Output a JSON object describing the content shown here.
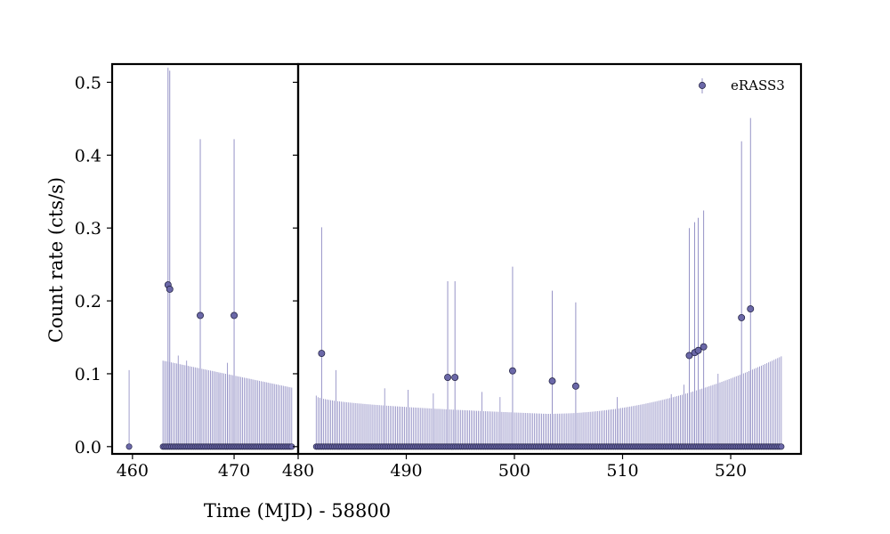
{
  "chart_data": {
    "type": "scatter",
    "title": "",
    "xlabel": "Time (MJD) - 58800",
    "ylabel": "Count rate (cts/s)",
    "ylim": [
      -0.01,
      0.525
    ],
    "yticks": [
      0.0,
      0.1,
      0.2,
      0.3,
      0.4,
      0.5
    ],
    "ytick_labels": [
      "0.0",
      "0.1",
      "0.2",
      "0.3",
      "0.4",
      "0.5"
    ],
    "colors": {
      "marker": "#6b68a8",
      "errorbar": "#8a87c0",
      "edge": "#1a1a3a"
    },
    "panels": [
      {
        "name": "left",
        "xlim": [
          458,
          476.3
        ],
        "xticks": [
          460,
          470
        ],
        "xtick_labels": [
          "460",
          "470"
        ]
      },
      {
        "name": "right",
        "xlim": [
          480,
          526.5
        ],
        "xticks": [
          480,
          490,
          500,
          510,
          520
        ],
        "xtick_labels": [
          "480",
          "490",
          "500",
          "510",
          "520"
        ]
      }
    ],
    "legend": {
      "position": "top-right",
      "entries": [
        {
          "label": "eRASS3"
        }
      ]
    },
    "series": [
      {
        "name": "eRASS3",
        "detections": [
          {
            "x": 463.5,
            "y": 0.222,
            "err": 0.298
          },
          {
            "x": 463.67,
            "y": 0.216,
            "err": 0.3
          },
          {
            "x": 466.67,
            "y": 0.18,
            "err": 0.242
          },
          {
            "x": 470.0,
            "y": 0.18,
            "err": 0.242
          },
          {
            "x": 482.17,
            "y": 0.128,
            "err": 0.173
          },
          {
            "x": 493.83,
            "y": 0.095,
            "err": 0.132
          },
          {
            "x": 494.5,
            "y": 0.095,
            "err": 0.132
          },
          {
            "x": 499.83,
            "y": 0.104,
            "err": 0.143
          },
          {
            "x": 503.5,
            "y": 0.09,
            "err": 0.124
          },
          {
            "x": 505.67,
            "y": 0.083,
            "err": 0.115
          },
          {
            "x": 516.17,
            "y": 0.125,
            "err": 0.175
          },
          {
            "x": 516.67,
            "y": 0.129,
            "err": 0.179
          },
          {
            "x": 517.0,
            "y": 0.132,
            "err": 0.182
          },
          {
            "x": 517.5,
            "y": 0.137,
            "err": 0.187
          },
          {
            "x": 521.0,
            "y": 0.177,
            "err": 0.242
          },
          {
            "x": 521.83,
            "y": 0.189,
            "err": 0.262
          }
        ],
        "upper_limits": {
          "zero_value": 0.0,
          "segments": [
            {
              "x_start": 459.67,
              "x_end": 459.67,
              "step": 0.1667,
              "err_start": 0.105,
              "err_end": 0.105
            },
            {
              "x_start": 463.0,
              "x_end": 475.67,
              "step": 0.1667,
              "err_start": 0.118,
              "err_end": 0.081
            },
            {
              "x_start": 481.67,
              "x_end": 524.83,
              "step": 0.1667,
              "err_start": 0.07,
              "err_end": 0.125,
              "err_min": 0.045,
              "x_min": 503.0
            }
          ],
          "tall_bars": [
            {
              "x": 464.5,
              "err": 0.125
            },
            {
              "x": 465.33,
              "err": 0.118
            },
            {
              "x": 468.5,
              "err": 0.1
            },
            {
              "x": 469.33,
              "err": 0.115
            },
            {
              "x": 483.5,
              "err": 0.105
            },
            {
              "x": 488.0,
              "err": 0.08
            },
            {
              "x": 490.17,
              "err": 0.078
            },
            {
              "x": 492.5,
              "err": 0.073
            },
            {
              "x": 497.0,
              "err": 0.075
            },
            {
              "x": 498.67,
              "err": 0.068
            },
            {
              "x": 509.5,
              "err": 0.068
            },
            {
              "x": 514.5,
              "err": 0.072
            },
            {
              "x": 515.67,
              "err": 0.085
            },
            {
              "x": 518.83,
              "err": 0.1
            }
          ]
        }
      }
    ]
  }
}
